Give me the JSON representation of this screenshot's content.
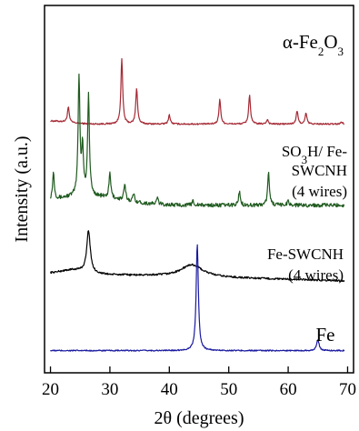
{
  "chart_data": {
    "type": "line",
    "title": "",
    "xlabel": "2θ (degrees)",
    "ylabel": "Intensity (a.u.)",
    "xlim": [
      19,
      71
    ],
    "x_ticks": [
      20,
      30,
      40,
      50,
      60,
      70
    ],
    "y_ticks_shown": false,
    "grid": false,
    "legend": "labels-next-to-curves",
    "series": [
      {
        "name": "α-Fe2O3",
        "label_parts": [
          "α-Fe",
          "2",
          "O",
          "3"
        ],
        "color": "#a52a35",
        "offset": 3.0,
        "baseline": 0.0,
        "noise": 0.01,
        "peaks": [
          {
            "x": 23.0,
            "h": 0.2
          },
          {
            "x": 32.0,
            "h": 0.85
          },
          {
            "x": 34.5,
            "h": 0.47
          },
          {
            "x": 40.0,
            "h": 0.12
          },
          {
            "x": 48.5,
            "h": 0.32
          },
          {
            "x": 53.5,
            "h": 0.38
          },
          {
            "x": 56.5,
            "h": 0.06
          },
          {
            "x": 61.5,
            "h": 0.17
          },
          {
            "x": 63.0,
            "h": 0.14
          },
          {
            "x": 69.0,
            "h": 0.03
          }
        ]
      },
      {
        "name": "SO3H/ Fe-SWCNH (4 wires)",
        "label_lines": [
          [
            "SO",
            "3",
            "H/ Fe-"
          ],
          [
            "SWCNH"
          ],
          [
            "(4 wires)"
          ]
        ],
        "color": "#1f5a1f",
        "offset": 1.9,
        "baseline": 0.04,
        "noise": 0.025,
        "peaks": [
          {
            "x": 20.5,
            "h": 0.35
          },
          {
            "x": 24.8,
            "h": 1.55
          },
          {
            "x": 25.4,
            "h": 0.6
          },
          {
            "x": 26.4,
            "h": 1.3
          },
          {
            "x": 30.0,
            "h": 0.32
          },
          {
            "x": 32.5,
            "h": 0.2
          },
          {
            "x": 34.0,
            "h": 0.1
          },
          {
            "x": 38.0,
            "h": 0.08
          },
          {
            "x": 44.0,
            "h": 0.06
          },
          {
            "x": 51.8,
            "h": 0.18
          },
          {
            "x": 56.7,
            "h": 0.42
          },
          {
            "x": 60.0,
            "h": 0.06
          }
        ]
      },
      {
        "name": "Fe-SWCNH (4 wires)",
        "label_lines": [
          [
            "Fe-SWCNH"
          ],
          [
            "(4 wires)"
          ]
        ],
        "color": "#000000",
        "offset": 1.0,
        "baseline": 0.05,
        "noise": 0.012,
        "peaks": [
          {
            "x": 26.4,
            "h": 0.55,
            "w": 0.35
          },
          {
            "x": 43.8,
            "h": 0.16,
            "w": 2.2
          }
        ]
      },
      {
        "name": "Fe",
        "label_parts": [
          "Fe"
        ],
        "color": "#1a1aa0",
        "offset": 0.0,
        "baseline": 0.04,
        "noise": 0.008,
        "peaks": [
          {
            "x": 44.7,
            "h": 1.4,
            "w": 0.22
          },
          {
            "x": 65.0,
            "h": 0.14,
            "w": 0.25
          }
        ]
      }
    ]
  }
}
